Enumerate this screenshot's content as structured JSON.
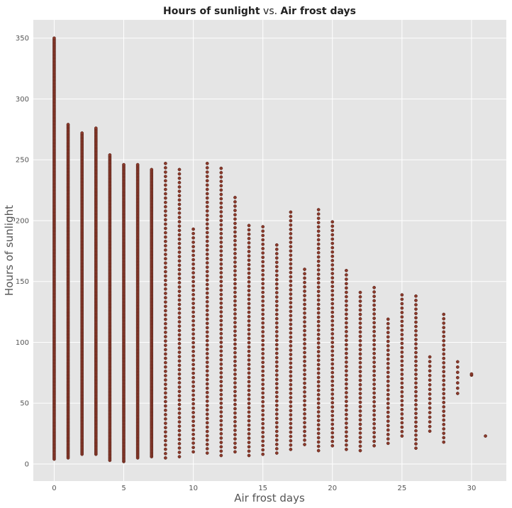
{
  "chart_data": {
    "type": "scatter",
    "title": {
      "part1": "Hours of sunlight",
      "connector": " vs. ",
      "part2": "Air frost days"
    },
    "xlabel": "Air frost days",
    "ylabel": "Hours of sunlight",
    "xlim": [
      -1.5,
      32.5
    ],
    "ylim": [
      -14,
      365
    ],
    "xticks": [
      0,
      5,
      10,
      15,
      20,
      25,
      30
    ],
    "yticks": [
      0,
      50,
      100,
      150,
      200,
      250,
      300,
      350
    ],
    "grid": true,
    "legend": "none",
    "colors": {
      "marker_fill": "#8b3a2b",
      "marker_edge": "#4a1a12",
      "background": "#e5e5e5",
      "grid": "#ffffff"
    },
    "column_ranges": [
      {
        "x": 0,
        "min": 4,
        "max": 350
      },
      {
        "x": 1,
        "min": 5,
        "max": 279
      },
      {
        "x": 2,
        "min": 8,
        "max": 272
      },
      {
        "x": 3,
        "min": 8,
        "max": 276
      },
      {
        "x": 4,
        "min": 3,
        "max": 254
      },
      {
        "x": 5,
        "min": 2,
        "max": 246
      },
      {
        "x": 6,
        "min": 5,
        "max": 246
      },
      {
        "x": 7,
        "min": 6,
        "max": 242
      },
      {
        "x": 8,
        "min": 5,
        "max": 247
      },
      {
        "x": 9,
        "min": 6,
        "max": 242
      },
      {
        "x": 10,
        "min": 10,
        "max": 193
      },
      {
        "x": 11,
        "min": 9,
        "max": 247
      },
      {
        "x": 12,
        "min": 7,
        "max": 243
      },
      {
        "x": 13,
        "min": 10,
        "max": 219
      },
      {
        "x": 14,
        "min": 7,
        "max": 196
      },
      {
        "x": 15,
        "min": 8,
        "max": 195
      },
      {
        "x": 16,
        "min": 9,
        "max": 180
      },
      {
        "x": 17,
        "min": 12,
        "max": 207
      },
      {
        "x": 18,
        "min": 16,
        "max": 160
      },
      {
        "x": 19,
        "min": 11,
        "max": 209
      },
      {
        "x": 20,
        "min": 15,
        "max": 199
      },
      {
        "x": 21,
        "min": 12,
        "max": 159
      },
      {
        "x": 22,
        "min": 11,
        "max": 141
      },
      {
        "x": 23,
        "min": 15,
        "max": 145
      },
      {
        "x": 24,
        "min": 17,
        "max": 119
      },
      {
        "x": 25,
        "min": 23,
        "max": 139
      },
      {
        "x": 26,
        "min": 13,
        "max": 138
      },
      {
        "x": 27,
        "min": 27,
        "max": 88
      },
      {
        "x": 28,
        "min": 18,
        "max": 123
      },
      {
        "x": 29,
        "min": 58,
        "max": 84
      },
      {
        "x": 30,
        "min": 73,
        "max": 74
      },
      {
        "x": 31,
        "min": 23,
        "max": 23
      }
    ]
  }
}
